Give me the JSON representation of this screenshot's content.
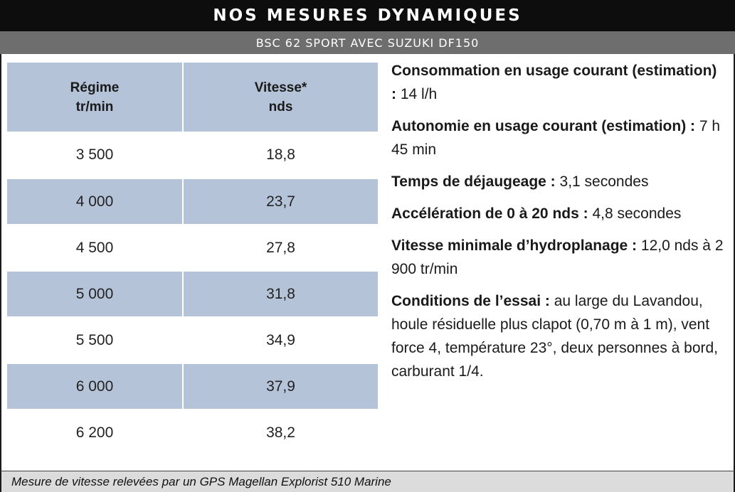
{
  "header": {
    "title": "NOS MESURES DYNAMIQUES",
    "subtitle": "BSC 62 SPORT AVEC SUZUKI DF150"
  },
  "table": {
    "col_regime_line1": "Régime",
    "col_regime_line2": "tr/min",
    "col_vitesse_line1": "Vitesse*",
    "col_vitesse_line2": "nds",
    "rows": [
      {
        "regime": "3 500",
        "vitesse": "18,8"
      },
      {
        "regime": "4 000",
        "vitesse": "23,7"
      },
      {
        "regime": "4 500",
        "vitesse": "27,8"
      },
      {
        "regime": "5 000",
        "vitesse": "31,8"
      },
      {
        "regime": "5 500",
        "vitesse": "34,9"
      },
      {
        "regime": "6 000",
        "vitesse": "37,9"
      },
      {
        "regime": "6 200",
        "vitesse": "38,2"
      }
    ]
  },
  "specs": {
    "consommation_label": "Consommation en usage courant (estimation) :",
    "consommation_value": "14 l/h",
    "autonomie_label": "Autonomie en usage courant (estimation)  :",
    "autonomie_value": "7 h 45 min",
    "dejaugeage_label": "Temps de déjaugeage :",
    "dejaugeage_value": "3,1 secondes",
    "acceleration_label": "Accélération de 0 à 20 nds :",
    "acceleration_value": "4,8 secondes",
    "hydroplanage_label": "Vitesse minimale d’hydroplanage :",
    "hydroplanage_value": "12,0 nds à 2 900 tr/min",
    "conditions_label": "Conditions de l’essai :",
    "conditions_value": "au large du Lavandou, houle résiduelle plus clapot (0,70 m à 1 m), vent force 4, température 23°, deux personnes à bord, carburant 1/4."
  },
  "footer": {
    "note": "Mesure de vitesse relevées par un GPS Magellan Explorist 510 Marine"
  }
}
